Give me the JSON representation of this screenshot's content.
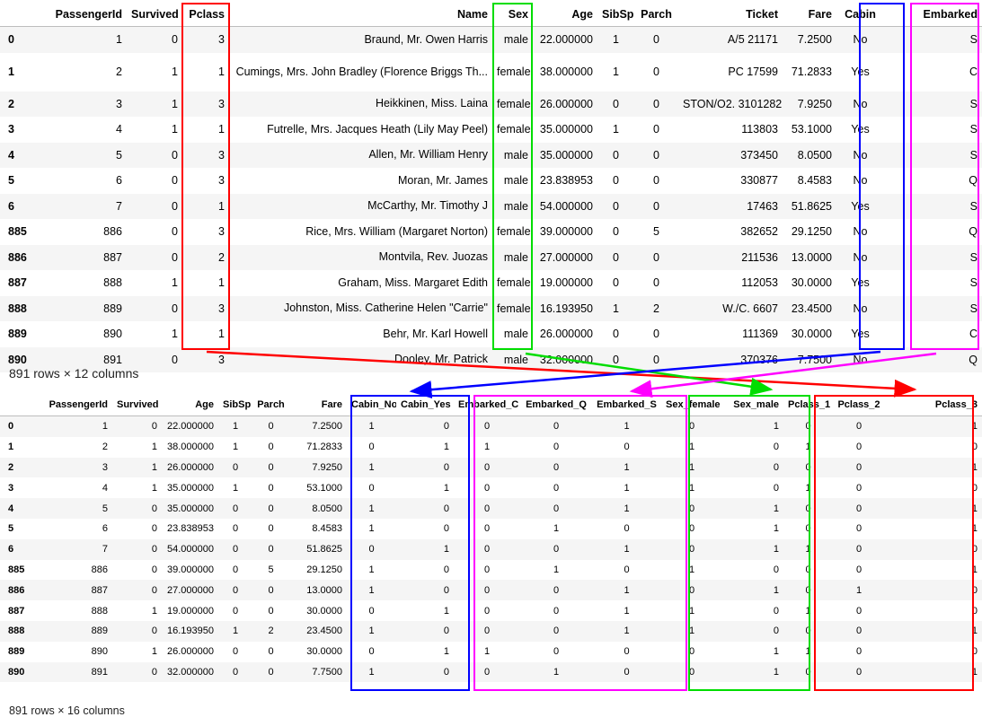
{
  "table1": {
    "columns": [
      "",
      "PassengerId",
      "Survived",
      "Pclass",
      "Name",
      "Sex",
      "Age",
      "SibSp",
      "Parch",
      "Ticket",
      "Fare",
      "Cabin",
      "Embarked"
    ],
    "rows": [
      [
        "0",
        "1",
        "0",
        "3",
        "Braund, Mr. Owen Harris",
        "male",
        "22.000000",
        "1",
        "0",
        "A/5 21171",
        "7.2500",
        "No",
        "S"
      ],
      [
        "1",
        "2",
        "1",
        "1",
        "Cumings, Mrs. John Bradley (Florence Briggs Th...",
        "female",
        "38.000000",
        "1",
        "0",
        "PC 17599",
        "71.2833",
        "Yes",
        "C"
      ],
      [
        "2",
        "3",
        "1",
        "3",
        "Heikkinen, Miss. Laina",
        "female",
        "26.000000",
        "0",
        "0",
        "STON/O2. 3101282",
        "7.9250",
        "No",
        "S"
      ],
      [
        "3",
        "4",
        "1",
        "1",
        "Futrelle, Mrs. Jacques Heath (Lily May Peel)",
        "female",
        "35.000000",
        "1",
        "0",
        "113803",
        "53.1000",
        "Yes",
        "S"
      ],
      [
        "4",
        "5",
        "0",
        "3",
        "Allen, Mr. William Henry",
        "male",
        "35.000000",
        "0",
        "0",
        "373450",
        "8.0500",
        "No",
        "S"
      ],
      [
        "5",
        "6",
        "0",
        "3",
        "Moran, Mr. James",
        "male",
        "23.838953",
        "0",
        "0",
        "330877",
        "8.4583",
        "No",
        "Q"
      ],
      [
        "6",
        "7",
        "0",
        "1",
        "McCarthy, Mr. Timothy J",
        "male",
        "54.000000",
        "0",
        "0",
        "17463",
        "51.8625",
        "Yes",
        "S"
      ],
      [
        "885",
        "886",
        "0",
        "3",
        "Rice, Mrs. William (Margaret Norton)",
        "female",
        "39.000000",
        "0",
        "5",
        "382652",
        "29.1250",
        "No",
        "Q"
      ],
      [
        "886",
        "887",
        "0",
        "2",
        "Montvila, Rev. Juozas",
        "male",
        "27.000000",
        "0",
        "0",
        "211536",
        "13.0000",
        "No",
        "S"
      ],
      [
        "887",
        "888",
        "1",
        "1",
        "Graham, Miss. Margaret Edith",
        "female",
        "19.000000",
        "0",
        "0",
        "112053",
        "30.0000",
        "Yes",
        "S"
      ],
      [
        "888",
        "889",
        "0",
        "3",
        "Johnston, Miss. Catherine Helen \"Carrie\"",
        "female",
        "16.193950",
        "1",
        "2",
        "W./C. 6607",
        "23.4500",
        "No",
        "S"
      ],
      [
        "889",
        "890",
        "1",
        "1",
        "Behr, Mr. Karl Howell",
        "male",
        "26.000000",
        "0",
        "0",
        "111369",
        "30.0000",
        "Yes",
        "C"
      ],
      [
        "890",
        "891",
        "0",
        "3",
        "Dooley, Mr. Patrick",
        "male",
        "32.000000",
        "0",
        "0",
        "370376",
        "7.7500",
        "No",
        "Q"
      ]
    ],
    "caption": "891 rows × 12 columns"
  },
  "table2": {
    "columns": [
      "",
      "PassengerId",
      "Survived",
      "Age",
      "SibSp",
      "Parch",
      "Fare",
      "Cabin_No",
      "Cabin_Yes",
      "Embarked_C",
      "Embarked_Q",
      "Embarked_S",
      "Sex_female",
      "Sex_male",
      "Pclass_1",
      "Pclass_2",
      "Pclass_3"
    ],
    "rows": [
      [
        "0",
        "1",
        "0",
        "22.000000",
        "1",
        "0",
        "7.2500",
        "1",
        "0",
        "0",
        "0",
        "1",
        "0",
        "1",
        "0",
        "0",
        "1"
      ],
      [
        "1",
        "2",
        "1",
        "38.000000",
        "1",
        "0",
        "71.2833",
        "0",
        "1",
        "1",
        "0",
        "0",
        "1",
        "0",
        "1",
        "0",
        "0"
      ],
      [
        "2",
        "3",
        "1",
        "26.000000",
        "0",
        "0",
        "7.9250",
        "1",
        "0",
        "0",
        "0",
        "1",
        "1",
        "0",
        "0",
        "0",
        "1"
      ],
      [
        "3",
        "4",
        "1",
        "35.000000",
        "1",
        "0",
        "53.1000",
        "0",
        "1",
        "0",
        "0",
        "1",
        "1",
        "0",
        "1",
        "0",
        "0"
      ],
      [
        "4",
        "5",
        "0",
        "35.000000",
        "0",
        "0",
        "8.0500",
        "1",
        "0",
        "0",
        "0",
        "1",
        "0",
        "1",
        "0",
        "0",
        "1"
      ],
      [
        "5",
        "6",
        "0",
        "23.838953",
        "0",
        "0",
        "8.4583",
        "1",
        "0",
        "0",
        "1",
        "0",
        "0",
        "1",
        "0",
        "0",
        "1"
      ],
      [
        "6",
        "7",
        "0",
        "54.000000",
        "0",
        "0",
        "51.8625",
        "0",
        "1",
        "0",
        "0",
        "1",
        "0",
        "1",
        "1",
        "0",
        "0"
      ],
      [
        "885",
        "886",
        "0",
        "39.000000",
        "0",
        "5",
        "29.1250",
        "1",
        "0",
        "0",
        "1",
        "0",
        "1",
        "0",
        "0",
        "0",
        "1"
      ],
      [
        "886",
        "887",
        "0",
        "27.000000",
        "0",
        "0",
        "13.0000",
        "1",
        "0",
        "0",
        "0",
        "1",
        "0",
        "1",
        "0",
        "1",
        "0"
      ],
      [
        "887",
        "888",
        "1",
        "19.000000",
        "0",
        "0",
        "30.0000",
        "0",
        "1",
        "0",
        "0",
        "1",
        "1",
        "0",
        "1",
        "0",
        "0"
      ],
      [
        "888",
        "889",
        "0",
        "16.193950",
        "1",
        "2",
        "23.4500",
        "1",
        "0",
        "0",
        "0",
        "1",
        "1",
        "0",
        "0",
        "0",
        "1"
      ],
      [
        "889",
        "890",
        "1",
        "26.000000",
        "0",
        "0",
        "30.0000",
        "0",
        "1",
        "1",
        "0",
        "0",
        "0",
        "1",
        "1",
        "0",
        "0"
      ],
      [
        "890",
        "891",
        "0",
        "32.000000",
        "0",
        "0",
        "7.7500",
        "1",
        "0",
        "0",
        "1",
        "0",
        "0",
        "1",
        "0",
        "0",
        "1"
      ]
    ],
    "caption": "891 rows × 16 columns"
  },
  "highlight_colors": {
    "pclass": "#ff0000",
    "sex": "#00dd00",
    "cabin": "#0000ff",
    "embarked": "#ff00ff"
  }
}
